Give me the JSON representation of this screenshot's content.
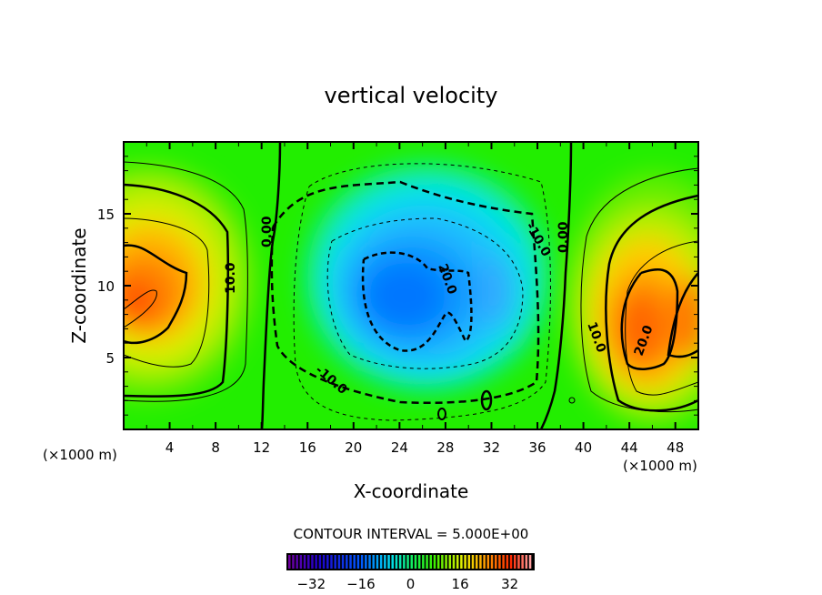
{
  "chart_data": {
    "type": "heatmap",
    "title": "vertical velocity",
    "xlabel": "X-coordinate",
    "ylabel": "Z-coordinate",
    "x_unit_label": "(×1000 m)",
    "xlim": [
      0,
      50
    ],
    "ylim": [
      0,
      20
    ],
    "x_ticks": [
      4,
      8,
      12,
      16,
      20,
      24,
      28,
      32,
      36,
      40,
      44,
      48
    ],
    "x_tick_labels": [
      "4",
      "8",
      "12",
      "16",
      "20",
      "24",
      "28",
      "32",
      "36",
      "40",
      "44",
      "48"
    ],
    "y_ticks": [
      5,
      10,
      15
    ],
    "y_tick_labels": [
      "5",
      "10",
      "15"
    ],
    "contour_interval_text": "CONTOUR INTERVAL = 5.000E+00",
    "contour_labels": [
      "0.00",
      "10.0",
      "0.00",
      "-10.0",
      "20.0",
      "-10.0",
      "0.00",
      "10.0",
      "20.0"
    ],
    "colorbar": {
      "range": [
        -40,
        40
      ],
      "ticks": [
        -32,
        -16,
        0,
        16,
        32
      ],
      "tick_labels": [
        "−32",
        "−16",
        "0",
        "16",
        "32"
      ]
    },
    "features": [
      {
        "name": "updraft-left",
        "x": 1,
        "z": 9,
        "max": 30
      },
      {
        "name": "downdraft-center",
        "x": 26,
        "z": 10,
        "min": -28
      },
      {
        "name": "updraft-right",
        "x": 46,
        "z": 7,
        "max": 27
      }
    ]
  }
}
